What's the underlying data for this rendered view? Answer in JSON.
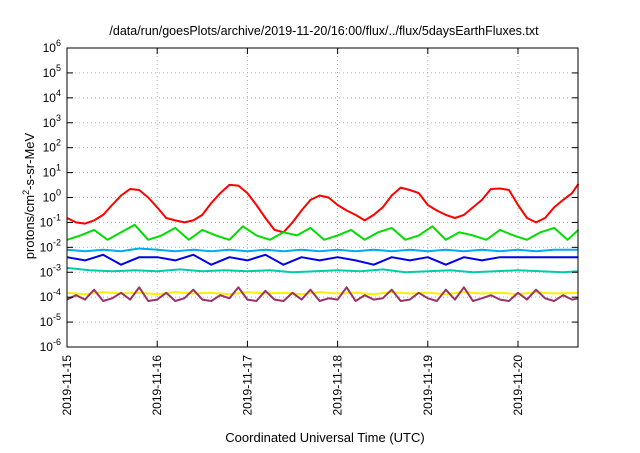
{
  "chart_data": {
    "type": "line",
    "title": "/data/run/goesPlots/archive/2019-11-20/16:00/flux/../flux/5daysEarthFluxes.txt",
    "xlabel": "Coordinated Universal Time (UTC)",
    "ylabel": {
      "prefix": "protons/cm",
      "superscript": "2",
      "suffix": "-s-sr-MeV"
    },
    "y_scale": "log",
    "ylim": [
      1e-06,
      1000000.0
    ],
    "y_ticks": [
      {
        "value": 1e-06,
        "base": "10",
        "exp": "-6"
      },
      {
        "value": 1e-05,
        "base": "10",
        "exp": "-5"
      },
      {
        "value": 0.0001,
        "base": "10",
        "exp": "-4"
      },
      {
        "value": 0.001,
        "base": "10",
        "exp": "-3"
      },
      {
        "value": 0.01,
        "base": "10",
        "exp": "-2"
      },
      {
        "value": 0.1,
        "base": "10",
        "exp": "-1"
      },
      {
        "value": 1,
        "base": "10",
        "exp": "0"
      },
      {
        "value": 10.0,
        "base": "10",
        "exp": "1"
      },
      {
        "value": 100.0,
        "base": "10",
        "exp": "2"
      },
      {
        "value": 1000.0,
        "base": "10",
        "exp": "3"
      },
      {
        "value": 10000.0,
        "base": "10",
        "exp": "4"
      },
      {
        "value": 100000.0,
        "base": "10",
        "exp": "5"
      },
      {
        "value": 1000000.0,
        "base": "10",
        "exp": "6"
      }
    ],
    "xlim": [
      "2019-11-15",
      "2019-11-20 16:00"
    ],
    "x_ticks": [
      "2019-11-15",
      "2019-11-16",
      "2019-11-17",
      "2019-11-18",
      "2019-11-19",
      "2019-11-20"
    ],
    "grid": true,
    "legend": "none",
    "series": [
      {
        "color": "#ff0000",
        "x_days": [
          0,
          0.1,
          0.2,
          0.3,
          0.4,
          0.5,
          0.6,
          0.7,
          0.8,
          0.9,
          1.0,
          1.1,
          1.2,
          1.3,
          1.4,
          1.5,
          1.6,
          1.7,
          1.8,
          1.9,
          2.0,
          2.1,
          2.2,
          2.3,
          2.4,
          2.5,
          2.6,
          2.7,
          2.8,
          2.9,
          3.0,
          3.1,
          3.2,
          3.3,
          3.4,
          3.5,
          3.6,
          3.7,
          3.8,
          3.9,
          4.0,
          4.1,
          4.2,
          4.3,
          4.4,
          4.5,
          4.6,
          4.7,
          4.8,
          4.9,
          5.0,
          5.1,
          5.2,
          5.3,
          5.4,
          5.5,
          5.6,
          5.67
        ],
        "values": [
          0.15,
          0.1,
          0.09,
          0.12,
          0.2,
          0.5,
          1.2,
          2.2,
          2.0,
          1.0,
          0.4,
          0.15,
          0.12,
          0.1,
          0.12,
          0.2,
          0.6,
          1.5,
          3.2,
          3.0,
          1.5,
          0.5,
          0.15,
          0.05,
          0.04,
          0.1,
          0.3,
          0.8,
          1.2,
          1.0,
          0.5,
          0.3,
          0.2,
          0.12,
          0.2,
          0.4,
          1.2,
          2.5,
          2.0,
          1.5,
          0.5,
          0.3,
          0.2,
          0.15,
          0.2,
          0.4,
          0.8,
          2.2,
          2.3,
          2.0,
          0.5,
          0.15,
          0.1,
          0.15,
          0.4,
          0.8,
          1.5,
          3.5
        ]
      },
      {
        "color": "#00dd00",
        "x_days": [
          0,
          0.15,
          0.3,
          0.45,
          0.6,
          0.75,
          0.9,
          1.05,
          1.2,
          1.35,
          1.5,
          1.65,
          1.8,
          1.95,
          2.1,
          2.25,
          2.4,
          2.55,
          2.7,
          2.85,
          3.0,
          3.15,
          3.3,
          3.45,
          3.6,
          3.75,
          3.9,
          4.05,
          4.2,
          4.35,
          4.5,
          4.65,
          4.8,
          4.95,
          5.1,
          5.25,
          5.4,
          5.55,
          5.67
        ],
        "values": [
          0.02,
          0.03,
          0.05,
          0.02,
          0.04,
          0.08,
          0.02,
          0.03,
          0.06,
          0.02,
          0.05,
          0.03,
          0.02,
          0.07,
          0.03,
          0.02,
          0.04,
          0.03,
          0.06,
          0.02,
          0.03,
          0.05,
          0.02,
          0.04,
          0.06,
          0.02,
          0.03,
          0.07,
          0.02,
          0.04,
          0.03,
          0.02,
          0.05,
          0.03,
          0.02,
          0.04,
          0.06,
          0.02,
          0.05
        ]
      },
      {
        "color": "#00aaee",
        "x_days": [
          0,
          0.2,
          0.4,
          0.6,
          0.8,
          1.0,
          1.2,
          1.4,
          1.6,
          1.8,
          2.0,
          2.2,
          2.4,
          2.6,
          2.8,
          3.0,
          3.2,
          3.4,
          3.6,
          3.8,
          4.0,
          4.2,
          4.4,
          4.6,
          4.8,
          5.0,
          5.2,
          5.4,
          5.67
        ],
        "values": [
          0.008,
          0.007,
          0.008,
          0.007,
          0.009,
          0.008,
          0.007,
          0.008,
          0.007,
          0.008,
          0.007,
          0.008,
          0.007,
          0.008,
          0.007,
          0.008,
          0.007,
          0.008,
          0.007,
          0.008,
          0.007,
          0.008,
          0.007,
          0.008,
          0.007,
          0.008,
          0.007,
          0.008,
          0.008
        ]
      },
      {
        "color": "#0000ee",
        "x_days": [
          0,
          0.2,
          0.4,
          0.6,
          0.8,
          1.0,
          1.2,
          1.4,
          1.6,
          1.8,
          2.0,
          2.2,
          2.4,
          2.6,
          2.8,
          3.0,
          3.2,
          3.4,
          3.6,
          3.8,
          4.0,
          4.2,
          4.4,
          4.6,
          4.8,
          5.0,
          5.2,
          5.4,
          5.67
        ],
        "values": [
          0.004,
          0.003,
          0.005,
          0.002,
          0.004,
          0.004,
          0.003,
          0.005,
          0.002,
          0.004,
          0.003,
          0.005,
          0.002,
          0.004,
          0.003,
          0.004,
          0.003,
          0.002,
          0.004,
          0.003,
          0.004,
          0.002,
          0.004,
          0.003,
          0.004,
          0.004,
          0.004,
          0.004,
          0.004
        ]
      },
      {
        "color": "#00ccaa",
        "x_days": [
          0,
          0.25,
          0.5,
          0.75,
          1.0,
          1.25,
          1.5,
          1.75,
          2.0,
          2.25,
          2.5,
          2.75,
          3.0,
          3.25,
          3.5,
          3.75,
          4.0,
          4.25,
          4.5,
          4.75,
          5.0,
          5.25,
          5.5,
          5.67
        ],
        "values": [
          0.0015,
          0.0012,
          0.0011,
          0.0012,
          0.0011,
          0.0013,
          0.0011,
          0.0012,
          0.0011,
          0.0012,
          0.001,
          0.0011,
          0.0012,
          0.0011,
          0.0013,
          0.001,
          0.0011,
          0.0012,
          0.001,
          0.0011,
          0.0012,
          0.0011,
          0.001,
          0.0011
        ]
      },
      {
        "color": "#ffee00",
        "x_days": [
          0,
          0.2,
          0.4,
          0.6,
          0.8,
          1.0,
          1.2,
          1.4,
          1.6,
          1.8,
          2.0,
          2.2,
          2.4,
          2.6,
          2.8,
          3.0,
          3.2,
          3.4,
          3.6,
          3.8,
          4.0,
          4.2,
          4.4,
          4.6,
          4.8,
          5.0,
          5.2,
          5.4,
          5.67
        ],
        "values": [
          0.00015,
          0.00013,
          0.00016,
          0.00014,
          0.00015,
          0.00013,
          0.00016,
          0.00014,
          0.00015,
          0.00013,
          0.00016,
          0.00014,
          0.00015,
          0.00013,
          0.00016,
          0.00014,
          0.00015,
          0.00013,
          0.00016,
          0.00014,
          0.00015,
          0.00013,
          0.00016,
          0.00014,
          0.00015,
          0.00013,
          0.00016,
          0.00014,
          0.00015
        ]
      },
      {
        "color": "#993366",
        "x_days": [
          0,
          0.1,
          0.2,
          0.3,
          0.4,
          0.5,
          0.6,
          0.7,
          0.8,
          0.9,
          1.0,
          1.1,
          1.2,
          1.3,
          1.4,
          1.5,
          1.6,
          1.7,
          1.8,
          1.9,
          2.0,
          2.1,
          2.2,
          2.3,
          2.4,
          2.5,
          2.6,
          2.7,
          2.8,
          2.9,
          3.0,
          3.1,
          3.2,
          3.3,
          3.4,
          3.5,
          3.6,
          3.7,
          3.8,
          3.9,
          4.0,
          4.1,
          4.2,
          4.3,
          4.4,
          4.5,
          4.6,
          4.7,
          4.8,
          4.9,
          5.0,
          5.1,
          5.2,
          5.3,
          5.4,
          5.5,
          5.6,
          5.67
        ],
        "values": [
          8e-05,
          0.00012,
          8e-05,
          0.0002,
          7e-05,
          9e-05,
          0.00015,
          8e-05,
          0.00025,
          7e-05,
          8e-05,
          0.00015,
          7e-05,
          9e-05,
          0.0002,
          8e-05,
          7e-05,
          0.00012,
          9e-05,
          0.00025,
          8e-05,
          7e-05,
          0.00018,
          8e-05,
          7e-05,
          0.00015,
          8e-05,
          0.0002,
          7e-05,
          9e-05,
          8e-05,
          0.00025,
          7e-05,
          0.00012,
          8e-05,
          9e-05,
          0.0002,
          7e-05,
          8e-05,
          0.00015,
          9e-05,
          7e-05,
          0.0002,
          8e-05,
          0.00025,
          7e-05,
          9e-05,
          0.00012,
          8e-05,
          7e-05,
          0.00015,
          8e-05,
          0.0002,
          9e-05,
          7e-05,
          0.00012,
          8e-05,
          9e-05
        ]
      }
    ]
  }
}
